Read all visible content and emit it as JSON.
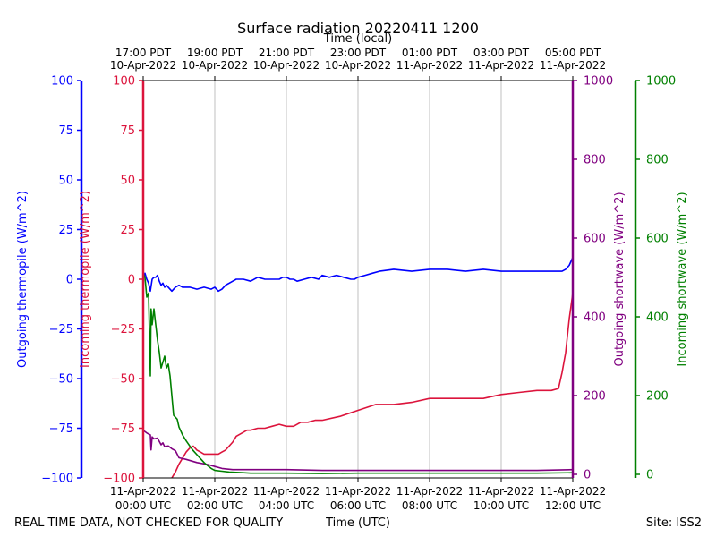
{
  "chart_data": {
    "type": "line",
    "title": "Surface radiation 20220411 1200",
    "xlabel_bottom": "Time (UTC)",
    "xlabel_top": "Time (local)",
    "footer_left": "REAL TIME DATA, NOT CHECKED FOR QUALITY",
    "footer_right": "Site: ISS2",
    "xlim": [
      0,
      12
    ],
    "x_ticks_bottom": [
      {
        "x": 0,
        "line1": "11-Apr-2022",
        "line2": "00:00 UTC"
      },
      {
        "x": 2,
        "line1": "11-Apr-2022",
        "line2": "02:00 UTC"
      },
      {
        "x": 4,
        "line1": "11-Apr-2022",
        "line2": "04:00 UTC"
      },
      {
        "x": 6,
        "line1": "11-Apr-2022",
        "line2": "06:00 UTC"
      },
      {
        "x": 8,
        "line1": "11-Apr-2022",
        "line2": "08:00 UTC"
      },
      {
        "x": 10,
        "line1": "11-Apr-2022",
        "line2": "10:00 UTC"
      },
      {
        "x": 12,
        "line1": "11-Apr-2022",
        "line2": "12:00 UTC"
      }
    ],
    "x_ticks_top": [
      {
        "x": 0,
        "line1": "17:00 PDT",
        "line2": "10-Apr-2022"
      },
      {
        "x": 2,
        "line1": "19:00 PDT",
        "line2": "10-Apr-2022"
      },
      {
        "x": 4,
        "line1": "21:00 PDT",
        "line2": "10-Apr-2022"
      },
      {
        "x": 6,
        "line1": "23:00 PDT",
        "line2": "10-Apr-2022"
      },
      {
        "x": 8,
        "line1": "01:00 PDT",
        "line2": "11-Apr-2022"
      },
      {
        "x": 10,
        "line1": "03:00 PDT",
        "line2": "11-Apr-2022"
      },
      {
        "x": 12,
        "line1": "05:00 PDT",
        "line2": "11-Apr-2022"
      }
    ],
    "axes": [
      {
        "id": "out_thermo",
        "label": "Outgoing thermopile (W/m^2)",
        "color": "#0000ff",
        "ylim": [
          -100,
          100
        ],
        "ticks": [
          100,
          75,
          50,
          25,
          0,
          -25,
          -50,
          -75,
          -100
        ],
        "tick_labels": [
          "100",
          "75",
          "50",
          "25",
          "0",
          "−25",
          "−50",
          "−75",
          "−100"
        ]
      },
      {
        "id": "in_thermo",
        "label": "Incoming thermopile (W/m^2)",
        "color": "#dc143c",
        "ylim": [
          -100,
          100
        ],
        "ticks": [
          100,
          75,
          50,
          25,
          0,
          -25,
          -50,
          -75,
          -100
        ],
        "tick_labels": [
          "100",
          "75",
          "50",
          "25",
          "0",
          "−25",
          "−50",
          "−75",
          "−100"
        ]
      },
      {
        "id": "out_sw",
        "label": "Outgoing shortwave (W/m^2)",
        "color": "#800080",
        "ylim": [
          0,
          1000
        ],
        "ticks": [
          0,
          200,
          400,
          600,
          800,
          1000
        ],
        "tick_labels": [
          "0",
          "200",
          "400",
          "600",
          "800",
          "1000"
        ]
      },
      {
        "id": "in_sw",
        "label": "Incoming shortwave (W/m^2)",
        "color": "#008000",
        "ylim": [
          0,
          1000
        ],
        "ticks": [
          0,
          200,
          400,
          600,
          800,
          1000
        ],
        "tick_labels": [
          "0",
          "200",
          "400",
          "600",
          "800",
          "1000"
        ]
      }
    ],
    "series": [
      {
        "name": "Outgoing thermopile",
        "axis": "out_thermo",
        "color": "#0000ff",
        "x": [
          0,
          0.05,
          0.1,
          0.15,
          0.2,
          0.25,
          0.3,
          0.35,
          0.4,
          0.45,
          0.5,
          0.55,
          0.6,
          0.65,
          0.7,
          0.8,
          0.9,
          1.0,
          1.1,
          1.2,
          1.3,
          1.5,
          1.7,
          1.9,
          2.0,
          2.1,
          2.2,
          2.3,
          2.4,
          2.5,
          2.6,
          2.8,
          3.0,
          3.2,
          3.4,
          3.6,
          3.8,
          3.9,
          4.0,
          4.1,
          4.2,
          4.3,
          4.5,
          4.7,
          4.9,
          5.0,
          5.2,
          5.4,
          5.6,
          5.8,
          5.9,
          6.0,
          6.2,
          6.4,
          6.6,
          7.0,
          7.5,
          8.0,
          8.5,
          9.0,
          9.5,
          10.0,
          10.5,
          11.0,
          11.5,
          11.7,
          11.8,
          11.9,
          12.0
        ],
        "values": [
          0,
          3,
          0,
          -2,
          -6,
          0,
          1,
          1,
          2,
          -1,
          -3,
          -2,
          -4,
          -3,
          -4,
          -6,
          -4,
          -3,
          -4,
          -4,
          -4,
          -5,
          -4,
          -5,
          -4,
          -6,
          -5,
          -3,
          -2,
          -1,
          0,
          0,
          -1,
          1,
          0,
          0,
          0,
          1,
          1,
          0,
          0,
          -1,
          0,
          1,
          0,
          2,
          1,
          2,
          1,
          0,
          0,
          1,
          2,
          3,
          4,
          5,
          4,
          5,
          5,
          4,
          5,
          4,
          4,
          4,
          4,
          4,
          5,
          7,
          11
        ]
      },
      {
        "name": "Incoming thermopile",
        "axis": "in_thermo",
        "color": "#dc143c",
        "x": [
          0.8,
          0.9,
          1.0,
          1.1,
          1.2,
          1.3,
          1.4,
          1.5,
          1.6,
          1.7,
          1.8,
          1.9,
          2.0,
          2.1,
          2.2,
          2.3,
          2.4,
          2.5,
          2.6,
          2.7,
          2.8,
          2.9,
          3.0,
          3.2,
          3.4,
          3.6,
          3.8,
          4.0,
          4.2,
          4.4,
          4.6,
          4.8,
          5.0,
          5.5,
          6.0,
          6.5,
          7.0,
          7.5,
          8.0,
          8.5,
          9.0,
          9.5,
          10.0,
          10.5,
          11.0,
          11.4,
          11.6,
          11.7,
          11.8,
          11.9,
          12.0
        ],
        "values": [
          -100,
          -97,
          -93,
          -90,
          -87,
          -85,
          -84,
          -86,
          -87,
          -88,
          -88,
          -88,
          -88,
          -88,
          -87,
          -86,
          -84,
          -82,
          -79,
          -78,
          -77,
          -76,
          -76,
          -75,
          -75,
          -74,
          -73,
          -74,
          -74,
          -72,
          -72,
          -71,
          -71,
          -69,
          -66,
          -63,
          -63,
          -62,
          -60,
          -60,
          -60,
          -60,
          -58,
          -57,
          -56,
          -56,
          -55,
          -47,
          -37,
          -20,
          -7
        ]
      },
      {
        "name": "Outgoing shortwave",
        "axis": "out_sw",
        "color": "#800080",
        "x": [
          0,
          0.1,
          0.2,
          0.22,
          0.25,
          0.3,
          0.4,
          0.5,
          0.55,
          0.6,
          0.7,
          0.8,
          0.9,
          1.0,
          1.1,
          1.2,
          1.5,
          1.8,
          2.0,
          2.2,
          2.5,
          3.0,
          4.0,
          5.0,
          6.0,
          7.0,
          8.0,
          9.0,
          10.0,
          11.0,
          12.0
        ],
        "values": [
          112,
          105,
          100,
          62,
          95,
          90,
          92,
          75,
          80,
          70,
          72,
          65,
          60,
          42,
          40,
          38,
          30,
          25,
          20,
          15,
          12,
          12,
          12,
          10,
          10,
          10,
          10,
          10,
          10,
          10,
          12
        ]
      },
      {
        "name": "Incoming shortwave",
        "axis": "in_sw",
        "color": "#008000",
        "x": [
          0,
          0.05,
          0.1,
          0.15,
          0.2,
          0.22,
          0.25,
          0.3,
          0.35,
          0.4,
          0.45,
          0.5,
          0.6,
          0.65,
          0.7,
          0.75,
          0.8,
          0.85,
          0.9,
          0.95,
          1.0,
          1.05,
          1.1,
          1.2,
          1.3,
          1.4,
          1.5,
          1.6,
          1.7,
          1.8,
          1.9,
          2.0,
          2.2,
          2.4,
          2.6,
          2.8,
          3.0,
          3.5,
          4.0,
          5.0,
          6.0,
          7.0,
          8.0,
          9.0,
          10.0,
          11.0,
          12.0
        ],
        "values": [
          510,
          500,
          450,
          460,
          250,
          420,
          380,
          420,
          380,
          340,
          310,
          270,
          300,
          270,
          280,
          250,
          200,
          150,
          145,
          140,
          120,
          110,
          100,
          85,
          72,
          60,
          50,
          40,
          30,
          22,
          15,
          10,
          8,
          6,
          5,
          4,
          3,
          3,
          3,
          2,
          3,
          3,
          3,
          3,
          3,
          3,
          4
        ]
      }
    ]
  }
}
